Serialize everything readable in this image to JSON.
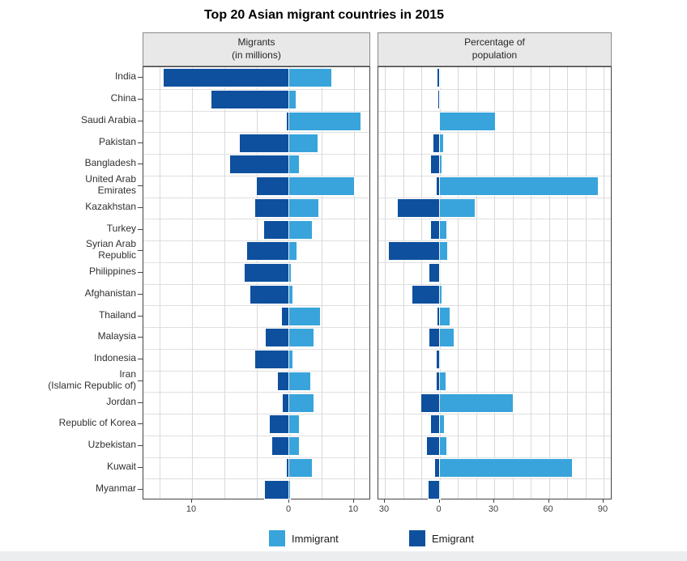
{
  "title": "Top 20 Asian migrant countries in 2015",
  "panel_headers": {
    "migrants": [
      "Migrants",
      "(in millions)"
    ],
    "percentage": [
      "Percentage of",
      "population"
    ]
  },
  "legend": {
    "immigrant_label": "Immigrant",
    "emigrant_label": "Emigrant"
  },
  "colors": {
    "immigrant": "#38A4DB",
    "emigrant": "#0E509E",
    "header_bg": "#E8E8E8",
    "grid": "#D9D9D9",
    "plot_border": "#454545"
  },
  "axes": {
    "migrants_tick_labels": [
      "10",
      "0",
      "10"
    ],
    "percentage_tick_labels": [
      "30",
      "0",
      "30",
      "60",
      "90"
    ]
  },
  "chart_data": {
    "type": "bar",
    "variant": "horizontal diverging bars, two faceted panels sharing one category axis",
    "title": "Top 20 Asian migrant countries in 2015",
    "legend_entries": [
      "Immigrant",
      "Emigrant"
    ],
    "legend_position": "bottom",
    "grid": true,
    "categories": [
      "India",
      "China",
      "Saudi Arabia",
      "Pakistan",
      "Bangladesh",
      "United Arab Emirates",
      "Kazakhstan",
      "Turkey",
      "Syrian Arab Republic",
      "Philippines",
      "Afghanistan",
      "Thailand",
      "Malaysia",
      "Indonesia",
      "Iran (Islamic Republic of)",
      "Jordan",
      "Republic of Korea",
      "Uzbekistan",
      "Kuwait",
      "Myanmar"
    ],
    "category_label_lines": [
      [
        "India"
      ],
      [
        "China"
      ],
      [
        "Saudi Arabia"
      ],
      [
        "Pakistan"
      ],
      [
        "Bangladesh"
      ],
      [
        "United Arab",
        "Emirates"
      ],
      [
        "Kazakhstan"
      ],
      [
        "Turkey"
      ],
      [
        "Syrian Arab",
        "Republic"
      ],
      [
        "Philippines"
      ],
      [
        "Afghanistan"
      ],
      [
        "Thailand"
      ],
      [
        "Malaysia"
      ],
      [
        "Indonesia"
      ],
      [
        "Iran",
        "(Islamic Republic of)"
      ],
      [
        "Jordan"
      ],
      [
        "Republic of Korea"
      ],
      [
        "Uzbekistan"
      ],
      [
        "Kuwait"
      ],
      [
        "Myanmar"
      ]
    ],
    "panels": [
      {
        "title": "Migrants (in millions)",
        "xlim": [
          -18,
          10.2
        ],
        "tick_values": [
          -10,
          0,
          10
        ],
        "series": [
          {
            "name": "Emigrant",
            "direction": "left",
            "values": [
              15.5,
              9.6,
              0.3,
              6.1,
              7.3,
              4.0,
              4.2,
              3.1,
              5.2,
              5.5,
              4.8,
              0.9,
              2.9,
              4.2,
              1.4,
              0.8,
              2.4,
              2.1,
              0.3,
              3.0
            ]
          },
          {
            "name": "Immigrant",
            "direction": "right",
            "values": [
              5.2,
              0.8,
              8.8,
              3.5,
              1.2,
              8.0,
              3.6,
              2.8,
              0.9,
              0.2,
              0.4,
              3.8,
              3.0,
              0.4,
              2.6,
              3.0,
              1.2,
              1.2,
              2.8,
              0.1
            ]
          }
        ]
      },
      {
        "title": "Percentage of population",
        "xlim": [
          -33.5,
          95
        ],
        "tick_values": [
          -30,
          0,
          30,
          60,
          90
        ],
        "series": [
          {
            "name": "Emigrant",
            "direction": "left",
            "values": [
              1.2,
              0.7,
              0.3,
              3.3,
              4.5,
              1.5,
              23,
              4.5,
              28,
              5.5,
              15,
              1.2,
              5.8,
              1.8,
              1.8,
              10,
              4.8,
              6.7,
              2.5,
              6.0
            ]
          },
          {
            "name": "Immigrant",
            "direction": "right",
            "values": [
              0.4,
              0.2,
              30.5,
              1.8,
              0.9,
              87,
              19.5,
              3.8,
              4.3,
              0.2,
              1.3,
              5.6,
              7.8,
              0.3,
              3.2,
              40,
              2.2,
              3.6,
              72.5,
              0.1
            ]
          }
        ]
      }
    ]
  }
}
